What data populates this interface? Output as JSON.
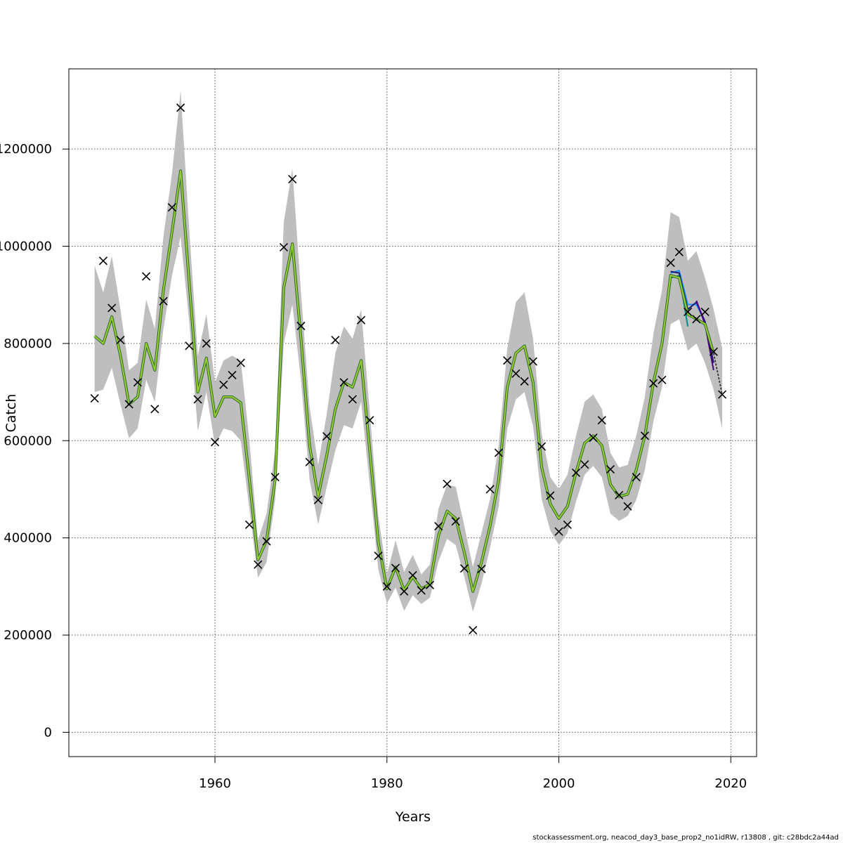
{
  "chart_data": {
    "type": "line",
    "title": "",
    "xlabel": "Years",
    "ylabel": "Catch",
    "xlim": [
      1943,
      2023
    ],
    "ylim": [
      -50000,
      1365000
    ],
    "x_ticks": [
      1960,
      1980,
      2000,
      2020
    ],
    "y_ticks": [
      0,
      200000,
      400000,
      600000,
      800000,
      1000000,
      1200000
    ],
    "y_tick_labels": [
      "0",
      "200000",
      "400000",
      "600000",
      "800000",
      "1000000",
      "1200000"
    ],
    "grid": true,
    "colors": {
      "band": "#bebebe",
      "fit_outer": "#2e6b2e",
      "fit_inner": "#9acd32",
      "points": "#000000",
      "retro_1": "#1e90ff",
      "retro_2": "#008b8b",
      "retro_3": "#191970",
      "retro_4": "#4b0082"
    },
    "fit": {
      "x": [
        1946,
        1947,
        1948,
        1949,
        1950,
        1951,
        1952,
        1953,
        1954,
        1955,
        1956,
        1957,
        1958,
        1959,
        1960,
        1961,
        1962,
        1963,
        1964,
        1965,
        1966,
        1967,
        1968,
        1969,
        1970,
        1971,
        1972,
        1973,
        1974,
        1975,
        1976,
        1977,
        1978,
        1979,
        1980,
        1981,
        1982,
        1983,
        1984,
        1985,
        1986,
        1987,
        1988,
        1989,
        1990,
        1991,
        1992,
        1993,
        1994,
        1995,
        1996,
        1997,
        1998,
        1999,
        2000,
        2001,
        2002,
        2003,
        2004,
        2005,
        2006,
        2007,
        2008,
        2009,
        2010,
        2011,
        2012,
        2013,
        2014,
        2015,
        2016,
        2017,
        2018
      ],
      "y": [
        815000,
        800000,
        855000,
        775000,
        675000,
        690000,
        800000,
        745000,
        910000,
        1030000,
        1155000,
        925000,
        700000,
        770000,
        650000,
        690000,
        690000,
        678000,
        520000,
        355000,
        395000,
        520000,
        915000,
        1005000,
        810000,
        590000,
        485000,
        570000,
        665000,
        720000,
        710000,
        765000,
        580000,
        390000,
        295000,
        340000,
        292000,
        320000,
        295000,
        305000,
        405000,
        455000,
        440000,
        370000,
        290000,
        350000,
        425000,
        520000,
        710000,
        780000,
        795000,
        720000,
        545000,
        470000,
        440000,
        465000,
        535000,
        595000,
        610000,
        590000,
        510000,
        485000,
        490000,
        540000,
        610000,
        720000,
        800000,
        940000,
        935000,
        860000,
        850000,
        840000,
        780000
      ],
      "lower": [
        700000,
        705000,
        750000,
        675000,
        605000,
        625000,
        725000,
        680000,
        830000,
        940000,
        1020000,
        845000,
        620000,
        700000,
        590000,
        625000,
        620000,
        600000,
        460000,
        318000,
        350000,
        480000,
        800000,
        880000,
        725000,
        520000,
        428000,
        505000,
        580000,
        632000,
        625000,
        680000,
        510000,
        335000,
        265000,
        298000,
        250000,
        282000,
        264000,
        277000,
        352000,
        398000,
        385000,
        320000,
        248000,
        306000,
        380000,
        465000,
        625000,
        685000,
        700000,
        630000,
        480000,
        415000,
        385000,
        410000,
        475000,
        530000,
        548000,
        525000,
        450000,
        435000,
        445000,
        478000,
        540000,
        640000,
        710000,
        840000,
        850000,
        785000,
        800000,
        760000,
        705000
      ],
      "upper": [
        960000,
        905000,
        980000,
        870000,
        745000,
        760000,
        890000,
        830000,
        1020000,
        1150000,
        1320000,
        1035000,
        775000,
        860000,
        720000,
        765000,
        775000,
        765000,
        600000,
        395000,
        450000,
        580000,
        1050000,
        1160000,
        905000,
        670000,
        550000,
        655000,
        780000,
        835000,
        810000,
        870000,
        660000,
        445000,
        325000,
        395000,
        330000,
        365000,
        325000,
        345000,
        460000,
        510000,
        505000,
        425000,
        340000,
        410000,
        480000,
        590000,
        790000,
        885000,
        905000,
        810000,
        615000,
        525000,
        500000,
        530000,
        610000,
        680000,
        695000,
        665000,
        575000,
        545000,
        550000,
        610000,
        690000,
        820000,
        910000,
        1070000,
        1060000,
        970000,
        990000,
        935000,
        870000
      ]
    },
    "projection_band": {
      "x": [
        2018,
        2019
      ],
      "lower": [
        705000,
        625000
      ],
      "upper": [
        870000,
        790000
      ]
    },
    "observed": {
      "x": [
        1946,
        1947,
        1948,
        1949,
        1950,
        1951,
        1952,
        1953,
        1954,
        1955,
        1956,
        1957,
        1958,
        1959,
        1960,
        1961,
        1962,
        1963,
        1964,
        1965,
        1966,
        1967,
        1968,
        1969,
        1970,
        1971,
        1972,
        1973,
        1974,
        1975,
        1976,
        1977,
        1978,
        1979,
        1980,
        1981,
        1982,
        1983,
        1984,
        1985,
        1986,
        1987,
        1988,
        1989,
        1990,
        1991,
        1992,
        1993,
        1994,
        1995,
        1996,
        1997,
        1998,
        1999,
        2000,
        2001,
        2002,
        2003,
        2004,
        2005,
        2006,
        2007,
        2008,
        2009,
        2010,
        2011,
        2012,
        2013,
        2014,
        2015,
        2016,
        2017,
        2018,
        2019
      ],
      "y": [
        687000,
        970000,
        873000,
        807000,
        675000,
        720000,
        938000,
        665000,
        887000,
        1080000,
        1285000,
        795000,
        685000,
        800000,
        597000,
        715000,
        735000,
        760000,
        427000,
        345000,
        393000,
        525000,
        998000,
        1138000,
        836000,
        556000,
        478000,
        609000,
        807000,
        720000,
        685000,
        848000,
        642000,
        363000,
        300000,
        338000,
        290000,
        323000,
        292000,
        303000,
        424000,
        511000,
        434000,
        337000,
        210000,
        336000,
        500000,
        575000,
        765000,
        738000,
        722000,
        763000,
        588000,
        487000,
        413000,
        427000,
        534000,
        551000,
        606000,
        642000,
        541000,
        488000,
        465000,
        525000,
        610000,
        718000,
        725000,
        966000,
        988000,
        865000,
        850000,
        865000,
        783000,
        695000
      ]
    },
    "retro": [
      {
        "color": "retro_1",
        "x": [
          2013,
          2014,
          2015,
          2016,
          2017
        ],
        "y": [
          945000,
          950000,
          880000,
          880000,
          845000
        ]
      },
      {
        "color": "retro_2",
        "x": [
          2013,
          2014,
          2015
        ],
        "y": [
          935000,
          940000,
          835000
        ]
      },
      {
        "color": "retro_3",
        "x": [
          2013,
          2014,
          2015,
          2016,
          2017,
          2018
        ],
        "y": [
          948000,
          945000,
          870000,
          885000,
          845000,
          760000
        ]
      },
      {
        "color": "retro_4",
        "x": [
          2016,
          2017,
          2018
        ],
        "y": [
          888000,
          840000,
          745000
        ]
      }
    ],
    "projection_line": {
      "x": [
        2018,
        2019
      ],
      "y": [
        780000,
        695000
      ]
    }
  },
  "footer": "stockassessment.org, neacod_day3_base_prop2_no1idRW, r13808 , git: c28bdc2a44ad"
}
